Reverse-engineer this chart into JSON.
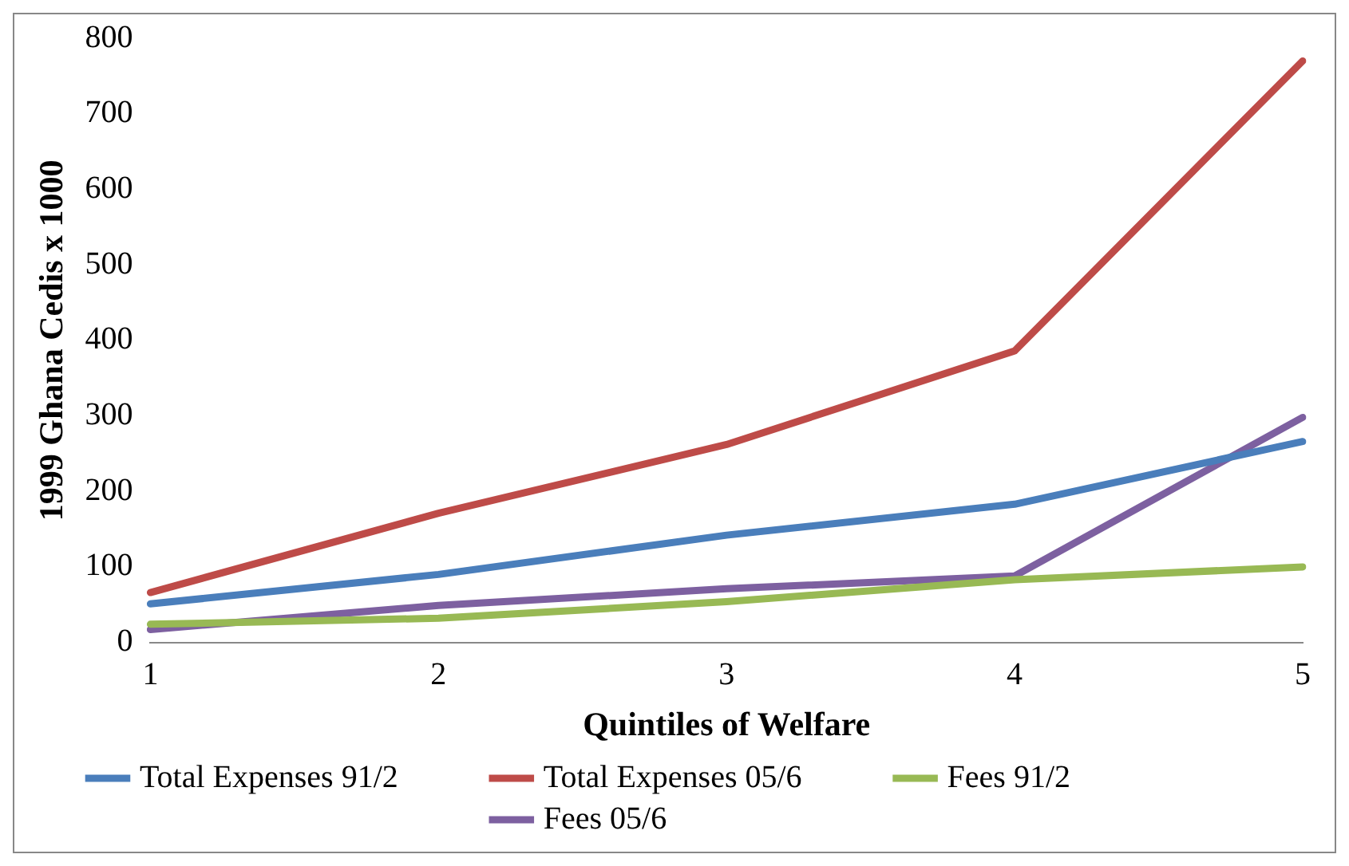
{
  "chart_data": {
    "type": "line",
    "xlabel": "Quintiles of Welfare",
    "ylabel": "1999 Ghana Cedis x 1000",
    "categories": [
      "1",
      "2",
      "3",
      "4",
      "5"
    ],
    "series": [
      {
        "name": "Total Expenses 91/2",
        "color": "#4a7ebb",
        "values": [
          51,
          90,
          142,
          183,
          266
        ]
      },
      {
        "name": "Total Expenses 05/6",
        "color": "#be4b48",
        "values": [
          66,
          171,
          262,
          386,
          770
        ]
      },
      {
        "name": "Fees 91/2",
        "color": "#98b954",
        "values": [
          24,
          32,
          54,
          83,
          100
        ]
      },
      {
        "name": "Fees 05/6",
        "color": "#7d60a0",
        "values": [
          17,
          49,
          71,
          88,
          298
        ]
      }
    ],
    "ylim": [
      0,
      800
    ],
    "yticks": [
      0,
      100,
      200,
      300,
      400,
      500,
      600,
      700,
      800
    ],
    "grid": false,
    "legend": "bottom",
    "marker": "none",
    "line_style": "solid"
  }
}
